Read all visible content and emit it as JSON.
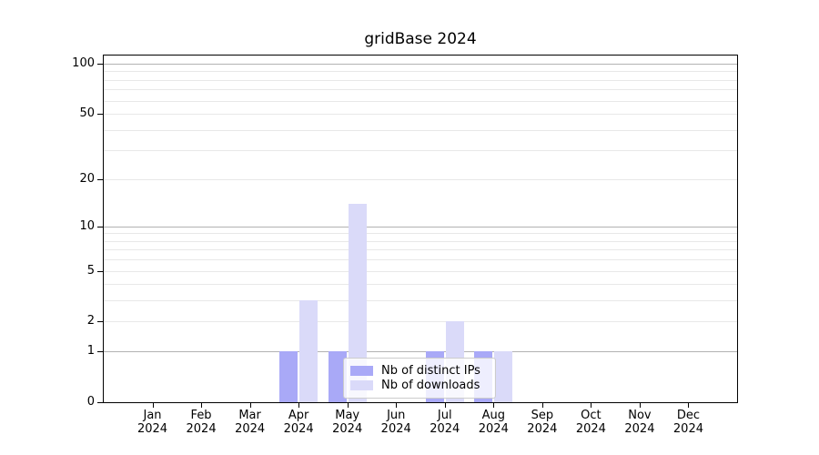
{
  "chart_data": {
    "type": "bar",
    "title": "gridBase 2024",
    "categories": [
      "Jan 2024",
      "Feb 2024",
      "Mar 2024",
      "Apr 2024",
      "May 2024",
      "Jun 2024",
      "Jul 2024",
      "Aug 2024",
      "Sep 2024",
      "Oct 2024",
      "Nov 2024",
      "Dec 2024"
    ],
    "series": [
      {
        "name": "Nb of distinct IPs",
        "color": "#a9a9f7",
        "values": [
          0,
          0,
          0,
          1,
          1,
          0,
          1,
          1,
          0,
          0,
          0,
          0
        ]
      },
      {
        "name": "Nb of downloads",
        "color": "#dadaf9",
        "values": [
          0,
          0,
          0,
          3,
          14,
          0,
          2,
          1,
          0,
          0,
          0,
          0
        ]
      }
    ],
    "xlabel": "",
    "ylabel": "",
    "yscale": "log1p",
    "ylim": [
      0,
      113
    ],
    "y_tick_labels": [
      0,
      1,
      2,
      5,
      10,
      20,
      50,
      100
    ],
    "y_major_gridlines": [
      1,
      10,
      100
    ],
    "y_minor_gridlines": [
      2,
      3,
      4,
      5,
      6,
      7,
      8,
      9,
      20,
      30,
      40,
      50,
      60,
      70,
      80,
      90
    ],
    "grid": true,
    "legend_position": "lower center",
    "colors": {
      "grid_major": "#b2b2b2",
      "grid_minor": "#e8e8e8",
      "spine": "#000000",
      "text": "#000000"
    }
  }
}
